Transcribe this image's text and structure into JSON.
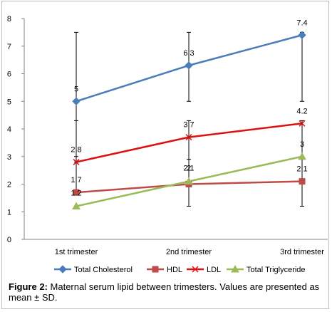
{
  "chart_data": {
    "type": "line",
    "categories": [
      "1st trimester",
      "2nd trimester",
      "3rd trimester"
    ],
    "ylim": [
      0,
      8
    ],
    "yticks": [
      0,
      1,
      2,
      3,
      4,
      5,
      6,
      7,
      8
    ],
    "grid": false,
    "legend_position": "bottom",
    "series": [
      {
        "name": "Total Cholesterol",
        "color": "#4a7ebb",
        "marker": "diamond",
        "values": [
          5,
          6.3,
          7.4
        ],
        "labels": [
          "5",
          "6.3",
          "7.4"
        ],
        "err_low": [
          2.8,
          5.0,
          5.0
        ],
        "err_high": [
          7.5,
          7.5,
          7.5
        ]
      },
      {
        "name": "HDL",
        "color": "#be4b48",
        "marker": "square",
        "values": [
          1.7,
          2.0,
          2.1
        ],
        "labels": [
          "1.7",
          "2",
          "2.1"
        ],
        "err_low": [
          1.7,
          1.2,
          1.2
        ],
        "err_high": [
          3.0,
          2.9,
          2.9
        ]
      },
      {
        "name": "LDL",
        "color": "#dd1111",
        "marker": "x",
        "values": [
          2.8,
          3.7,
          4.2
        ],
        "labels": [
          "2.8",
          "3.7",
          "4.2"
        ],
        "err_low": [
          1.7,
          2.0,
          3.0
        ],
        "err_high": [
          4.3,
          4.3,
          4.3
        ]
      },
      {
        "name": "Total Triglyceride",
        "color": "#9bbb59",
        "marker": "triangle",
        "values": [
          1.2,
          2.1,
          3
        ],
        "labels": [
          "1.2",
          "2.1",
          "3"
        ],
        "err_low": [
          1.2,
          1.2,
          1.2
        ],
        "err_high": [
          1.2,
          2.1,
          3.0
        ]
      }
    ]
  },
  "caption": {
    "prefix": "Figure 2:",
    "text": " Maternal serum lipid between trimesters. Values are presented as mean ± SD."
  }
}
